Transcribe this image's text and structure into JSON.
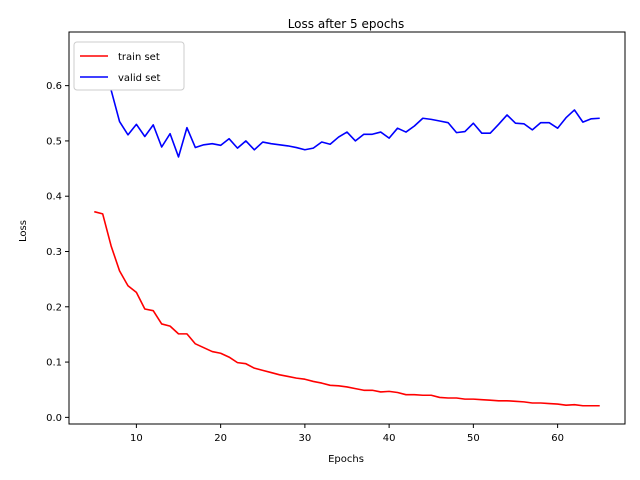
{
  "chart_data": {
    "type": "line",
    "title": "Loss after 5 epochs",
    "xlabel": "Epochs",
    "ylabel": "Loss",
    "xlim": [
      2,
      68
    ],
    "ylim": [
      -0.012,
      0.697
    ],
    "xticks": [
      10,
      20,
      30,
      40,
      50,
      60
    ],
    "yticks": [
      0.0,
      0.1,
      0.2,
      0.3,
      0.4,
      0.5,
      0.6
    ],
    "grid": false,
    "legend": "top-left",
    "x": [
      5,
      6,
      7,
      8,
      9,
      10,
      11,
      12,
      13,
      14,
      15,
      16,
      17,
      18,
      19,
      20,
      21,
      22,
      23,
      24,
      25,
      26,
      27,
      28,
      29,
      30,
      31,
      32,
      33,
      34,
      35,
      36,
      37,
      38,
      39,
      40,
      41,
      42,
      43,
      44,
      45,
      46,
      47,
      48,
      49,
      50,
      51,
      52,
      53,
      54,
      55,
      56,
      57,
      58,
      59,
      60,
      61,
      62,
      63,
      64,
      65
    ],
    "series": [
      {
        "name": "train set",
        "color": "#ff0000",
        "values": [
          0.372,
          0.368,
          0.31,
          0.265,
          0.238,
          0.226,
          0.196,
          0.193,
          0.169,
          0.165,
          0.151,
          0.151,
          0.133,
          0.126,
          0.119,
          0.116,
          0.109,
          0.099,
          0.097,
          0.089,
          0.085,
          0.081,
          0.077,
          0.074,
          0.071,
          0.069,
          0.065,
          0.062,
          0.058,
          0.057,
          0.055,
          0.052,
          0.049,
          0.049,
          0.046,
          0.047,
          0.045,
          0.041,
          0.041,
          0.04,
          0.04,
          0.036,
          0.035,
          0.035,
          0.033,
          0.033,
          0.032,
          0.031,
          0.03,
          0.03,
          0.029,
          0.028,
          0.026,
          0.026,
          0.025,
          0.024,
          0.022,
          0.023,
          0.021,
          0.021,
          0.021
        ]
      },
      {
        "name": "valid set",
        "color": "#0000ff",
        "values": [
          0.612,
          0.664,
          0.592,
          0.535,
          0.511,
          0.53,
          0.508,
          0.529,
          0.489,
          0.513,
          0.471,
          0.524,
          0.488,
          0.493,
          0.495,
          0.492,
          0.504,
          0.487,
          0.5,
          0.484,
          0.498,
          0.495,
          0.493,
          0.491,
          0.488,
          0.484,
          0.487,
          0.498,
          0.494,
          0.507,
          0.516,
          0.5,
          0.512,
          0.512,
          0.516,
          0.505,
          0.523,
          0.516,
          0.527,
          0.541,
          0.539,
          0.536,
          0.533,
          0.515,
          0.517,
          0.532,
          0.514,
          0.514,
          0.53,
          0.547,
          0.532,
          0.531,
          0.52,
          0.533,
          0.533,
          0.523,
          0.542,
          0.556,
          0.534,
          0.54,
          0.541
        ]
      }
    ]
  }
}
